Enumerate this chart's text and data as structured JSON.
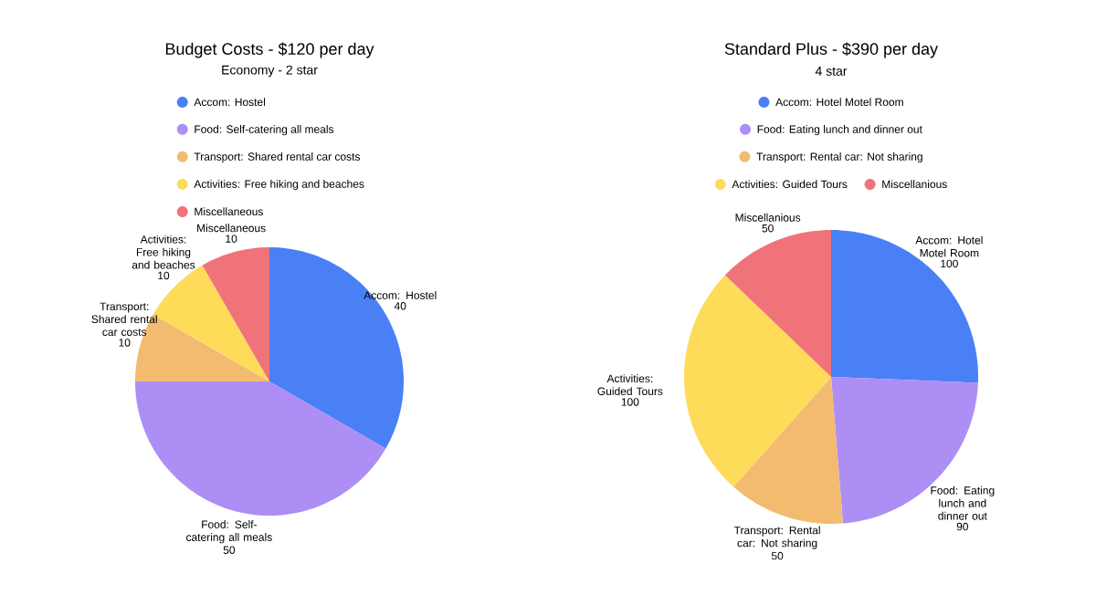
{
  "chart_data": [
    {
      "type": "pie",
      "title": "Budget Costs - $120 per day",
      "subtitle": "Economy - 2 star",
      "legend": "top",
      "categories": [
        "Accom: Hostel",
        "Food: Self-catering all meals",
        "Transport: Shared rental car costs",
        "Activities: Free hiking and beaches",
        "Miscellaneous"
      ],
      "values": [
        40,
        50,
        10,
        10,
        10
      ],
      "colors": [
        "#4a80f6",
        "#ad8ef5",
        "#f2bb70",
        "#fedc5a",
        "#f0737a"
      ],
      "data_labels": true
    },
    {
      "type": "pie",
      "title": "Standard Plus - $390 per day",
      "subtitle": "4 star",
      "legend": "top",
      "categories": [
        "Accom: Hotel Motel Room",
        "Food: Eating lunch and dinner out",
        "Transport: Rental car: Not sharing",
        "Activities: Guided Tours",
        "Miscellanious"
      ],
      "values": [
        100,
        90,
        50,
        100,
        50
      ],
      "colors": [
        "#4a80f6",
        "#ad8ef5",
        "#f2bb70",
        "#fedc5a",
        "#f0737a"
      ],
      "data_labels": true
    }
  ]
}
